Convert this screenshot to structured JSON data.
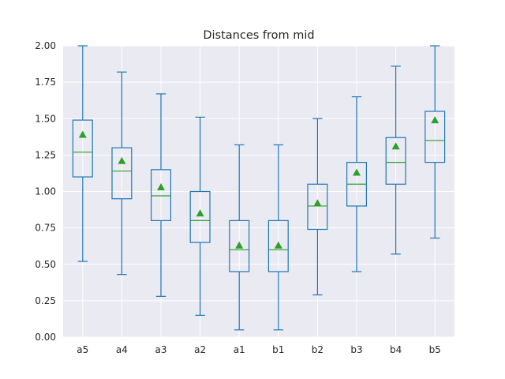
{
  "chart_data": {
    "type": "box",
    "title": "Distances from mid",
    "xlabel": "",
    "ylabel": "",
    "ylim": [
      0,
      2.0
    ],
    "yticks": [
      "0.00",
      "0.25",
      "0.50",
      "0.75",
      "1.00",
      "1.25",
      "1.50",
      "1.75",
      "2.00"
    ],
    "grid": true,
    "categories": [
      "a5",
      "a4",
      "a3",
      "a2",
      "a1",
      "b1",
      "b2",
      "b3",
      "b4",
      "b5"
    ],
    "boxes": [
      {
        "label": "a5",
        "whisker_low": 0.52,
        "q1": 1.1,
        "median": 1.27,
        "q3": 1.49,
        "whisker_high": 2.0,
        "mean": 1.39
      },
      {
        "label": "a4",
        "whisker_low": 0.43,
        "q1": 0.95,
        "median": 1.14,
        "q3": 1.3,
        "whisker_high": 1.82,
        "mean": 1.21
      },
      {
        "label": "a3",
        "whisker_low": 0.28,
        "q1": 0.8,
        "median": 0.97,
        "q3": 1.15,
        "whisker_high": 1.67,
        "mean": 1.03
      },
      {
        "label": "a2",
        "whisker_low": 0.15,
        "q1": 0.65,
        "median": 0.8,
        "q3": 1.0,
        "whisker_high": 1.51,
        "mean": 0.85
      },
      {
        "label": "a1",
        "whisker_low": 0.05,
        "q1": 0.45,
        "median": 0.6,
        "q3": 0.8,
        "whisker_high": 1.32,
        "mean": 0.63
      },
      {
        "label": "b1",
        "whisker_low": 0.05,
        "q1": 0.45,
        "median": 0.6,
        "q3": 0.8,
        "whisker_high": 1.32,
        "mean": 0.63
      },
      {
        "label": "b2",
        "whisker_low": 0.29,
        "q1": 0.74,
        "median": 0.9,
        "q3": 1.05,
        "whisker_high": 1.5,
        "mean": 0.92
      },
      {
        "label": "b3",
        "whisker_low": 0.45,
        "q1": 0.9,
        "median": 1.05,
        "q3": 1.2,
        "whisker_high": 1.65,
        "mean": 1.13
      },
      {
        "label": "b4",
        "whisker_low": 0.57,
        "q1": 1.05,
        "median": 1.2,
        "q3": 1.37,
        "whisker_high": 1.86,
        "mean": 1.31
      },
      {
        "label": "b5",
        "whisker_low": 0.68,
        "q1": 1.2,
        "median": 1.35,
        "q3": 1.55,
        "whisker_high": 2.0,
        "mean": 1.49
      }
    ],
    "colors": {
      "background": "#eaeaf2",
      "grid": "#ffffff",
      "box": "#1f77b4",
      "median": "#2ca02c",
      "mean_marker": "#2ca02c",
      "text": "#262626"
    }
  }
}
